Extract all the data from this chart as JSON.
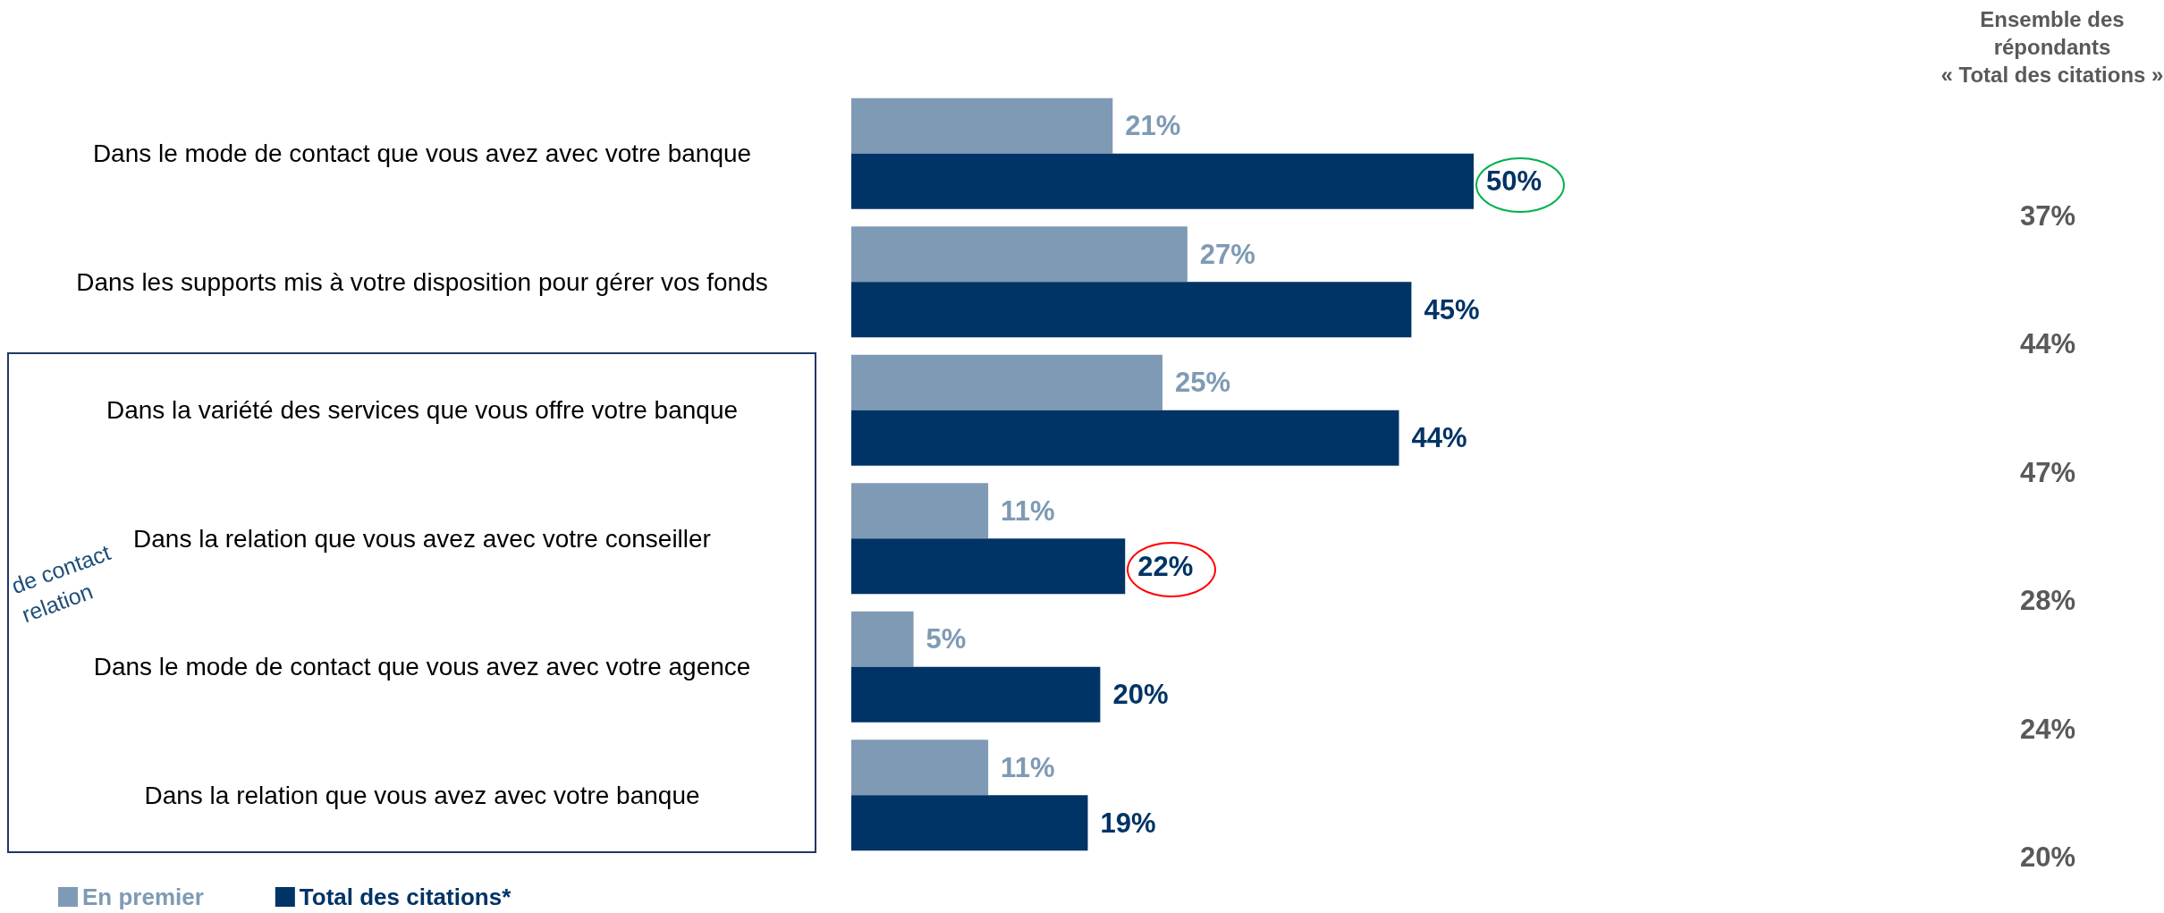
{
  "chart_data": {
    "type": "bar",
    "orientation": "horizontal",
    "categories": [
      "Dans le mode de contact que vous avez avec votre banque",
      "Dans les supports mis à votre disposition pour gérer vos fonds",
      "Dans la variété des services que vous offre votre banque",
      "Dans la relation que vous avez avec votre conseiller",
      "Dans le mode de contact que vous avez avec votre agence",
      "Dans la relation que vous avez avec votre banque"
    ],
    "series": [
      {
        "name": "En premier",
        "color": "#7f9ab5",
        "values": [
          21,
          27,
          25,
          11,
          5,
          11
        ],
        "value_labels": [
          "21%",
          "27%",
          "25%",
          "11%",
          "5%",
          "11%"
        ]
      },
      {
        "name": "Total des citations*",
        "color": "#003366",
        "values": [
          50,
          45,
          44,
          22,
          20,
          19
        ],
        "value_labels": [
          "50%",
          "45%",
          "44%",
          "22%",
          "20%",
          "19%"
        ]
      }
    ],
    "legend": "bottom left",
    "annotations": [
      "Ensemble des\nrépondants\n« Total des citations »",
      "37%",
      "44%",
      "47%",
      "28%",
      "24%",
      "20%",
      "de contact\nrelation"
    ]
  }
}
